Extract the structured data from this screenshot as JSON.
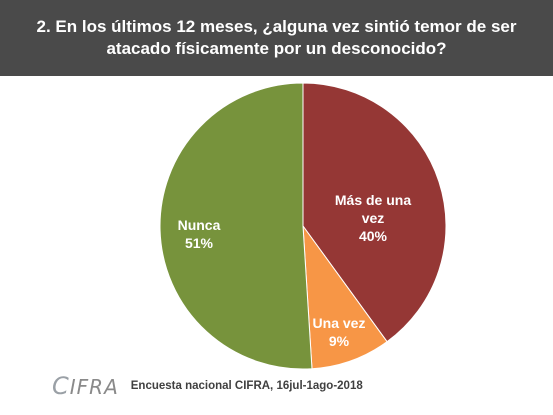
{
  "header": {
    "title": "2. En los últimos 12 meses, ¿alguna vez sintió temor de ser atacado físicamente por un desconocido?"
  },
  "chart_data": {
    "type": "pie",
    "title": "2. En los últimos 12 meses, ¿alguna vez sintió temor de ser atacado físicamente por un desconocido?",
    "slices": [
      {
        "label": "Más de una vez",
        "value": 40,
        "value_label": "40%",
        "color": "#953735"
      },
      {
        "label": "Una vez",
        "value": 9,
        "value_label": "9%",
        "color": "#f79646"
      },
      {
        "label": "Nunca",
        "value": 51,
        "value_label": "51%",
        "color": "#77933c"
      }
    ]
  },
  "footer": {
    "logo_text": "IFRA",
    "logo_letter": "C",
    "source": "Encuesta nacional CIFRA,  16jul-1ago-2018"
  },
  "colors": {
    "header_bg": "#4a4a4a",
    "header_text": "#ffffff",
    "label_light": "#ffffff",
    "label_dark": "#1f1f1f"
  }
}
